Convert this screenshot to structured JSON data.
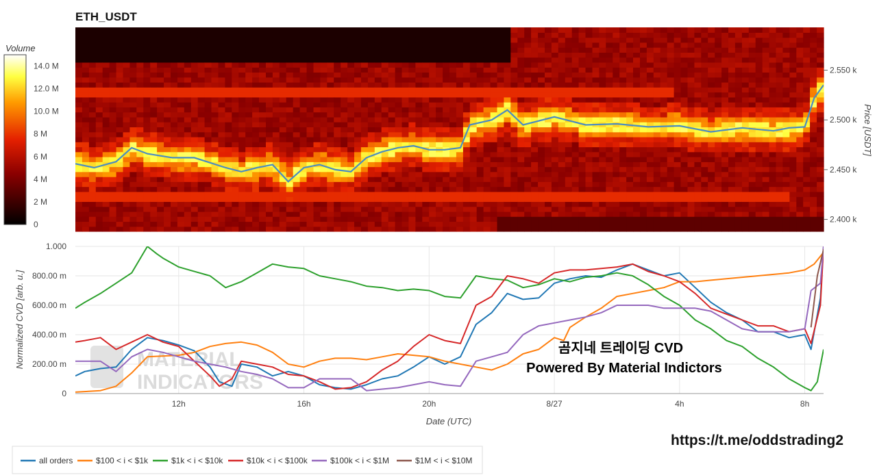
{
  "heatmap": {
    "title": "ETH_USDT",
    "colorbar_title": "Volume",
    "colorbar_ticks": [
      "0",
      "2 M",
      "4 M",
      "6 M",
      "8 M",
      "10.0 M",
      "12.0 M",
      "14.0 M"
    ],
    "price_axis_title": "Price [USDT]",
    "price_ticks": [
      "2.400 k",
      "2.450 k",
      "2.500 k",
      "2.550 k"
    ]
  },
  "cvd": {
    "ylabel": "Normalized CVD [arb. u.]",
    "xlabel": "Date (UTC)",
    "y_ticks": [
      "0",
      "200.00 m",
      "400.00 m",
      "600.00 m",
      "800.00 m",
      "1.000"
    ],
    "x_ticks": [
      "12h",
      "16h",
      "20h",
      "8/27",
      "4h",
      "8h"
    ]
  },
  "overlay": {
    "line1": "곰지네 트레이딩 CVD",
    "line2": "Powered By Material Indictors",
    "link": "https://t.me/oddstrading2",
    "watermark_line1": "MATERIAL",
    "watermark_line2": "INDICATORS"
  },
  "legend": [
    {
      "label": "all orders",
      "color": "#1f77b4"
    },
    {
      "label": "$100 < i < $1k",
      "color": "#ff7f0e"
    },
    {
      "label": "$1k < i < $10k",
      "color": "#2ca02c"
    },
    {
      "label": "$10k < i < $100k",
      "color": "#d62728"
    },
    {
      "label": "$100k < i < $1M",
      "color": "#9467bd"
    },
    {
      "label": "$1M < i < $10M",
      "color": "#8c564b"
    }
  ],
  "chart_data": [
    {
      "type": "heatmap",
      "title": "ETH_USDT",
      "ylabel": "Price [USDT]",
      "ylim": [
        2388,
        2593
      ],
      "x_time_hours": [
        8.7,
        32.6
      ],
      "colorbar": {
        "label": "Volume",
        "range": [
          0,
          15000000
        ]
      },
      "price_series": {
        "color": "#4a8cc2",
        "t": [
          8.7,
          9.3,
          10.0,
          10.5,
          11.0,
          11.8,
          12.5,
          13.5,
          14.0,
          14.5,
          15.0,
          15.5,
          16.0,
          16.5,
          17.0,
          17.5,
          18.0,
          18.5,
          19.0,
          19.5,
          20.0,
          20.5,
          21.0,
          21.3,
          22.0,
          22.5,
          23.0,
          24.0,
          25.0,
          26.0,
          27.0,
          28.0,
          29.0,
          30.0,
          31.0,
          31.5,
          32.0,
          32.3,
          32.6
        ],
        "price": [
          2456,
          2452,
          2458,
          2472,
          2466,
          2462,
          2462,
          2452,
          2448,
          2452,
          2455,
          2438,
          2452,
          2455,
          2450,
          2448,
          2462,
          2468,
          2472,
          2474,
          2470,
          2470,
          2472,
          2495,
          2500,
          2510,
          2495,
          2503,
          2495,
          2496,
          2493,
          2494,
          2488,
          2492,
          2489,
          2492,
          2493,
          2522,
          2535
        ]
      }
    },
    {
      "type": "line",
      "xlabel": "Date (UTC)",
      "ylabel": "Normalized CVD [arb. u.]",
      "ylim": [
        0,
        1.0
      ],
      "x_time_hours": [
        8.7,
        32.6
      ],
      "series": [
        {
          "name": "all orders",
          "color": "#1f77b4",
          "t": [
            8.7,
            9.0,
            9.5,
            10.0,
            10.5,
            11.0,
            11.5,
            12.0,
            12.5,
            13.0,
            13.3,
            13.7,
            14.0,
            14.5,
            15.0,
            15.5,
            16.0,
            16.5,
            17.0,
            17.5,
            18.0,
            18.5,
            19.0,
            19.5,
            20.0,
            20.5,
            21.0,
            21.5,
            22.0,
            22.5,
            23.0,
            23.5,
            24.0,
            24.5,
            25.0,
            25.5,
            26.0,
            26.5,
            27.0,
            27.5,
            28.0,
            28.5,
            29.0,
            29.5,
            30.0,
            30.5,
            31.0,
            31.5,
            32.0,
            32.2,
            32.5,
            32.6
          ],
          "y": [
            0.12,
            0.15,
            0.17,
            0.18,
            0.3,
            0.38,
            0.36,
            0.33,
            0.29,
            0.18,
            0.08,
            0.05,
            0.2,
            0.18,
            0.12,
            0.15,
            0.12,
            0.06,
            0.04,
            0.03,
            0.06,
            0.1,
            0.12,
            0.18,
            0.25,
            0.2,
            0.25,
            0.47,
            0.55,
            0.68,
            0.64,
            0.65,
            0.75,
            0.78,
            0.8,
            0.79,
            0.84,
            0.88,
            0.84,
            0.8,
            0.82,
            0.72,
            0.62,
            0.55,
            0.5,
            0.42,
            0.42,
            0.38,
            0.4,
            0.3,
            0.65,
            1.0
          ]
        },
        {
          "name": "$100 < i < $1k",
          "color": "#ff7f0e",
          "t": [
            8.7,
            9.5,
            10.0,
            10.5,
            11.0,
            12.0,
            12.5,
            13.0,
            13.5,
            14.0,
            14.5,
            15.0,
            15.5,
            16.0,
            16.5,
            17.0,
            17.5,
            18.0,
            18.5,
            19.0,
            19.5,
            20.0,
            20.5,
            21.0,
            21.5,
            22.0,
            22.5,
            23.0,
            23.5,
            24.0,
            24.3,
            24.5,
            25.0,
            25.5,
            26.0,
            26.5,
            27.0,
            27.5,
            28.0,
            28.5,
            29.0,
            29.5,
            30.0,
            30.5,
            31.0,
            31.5,
            32.0,
            32.3,
            32.6
          ],
          "y": [
            0.01,
            0.02,
            0.05,
            0.14,
            0.25,
            0.26,
            0.28,
            0.32,
            0.34,
            0.35,
            0.33,
            0.28,
            0.2,
            0.18,
            0.22,
            0.24,
            0.24,
            0.23,
            0.25,
            0.27,
            0.26,
            0.25,
            0.22,
            0.2,
            0.18,
            0.16,
            0.2,
            0.27,
            0.3,
            0.38,
            0.36,
            0.45,
            0.52,
            0.58,
            0.66,
            0.68,
            0.7,
            0.72,
            0.76,
            0.76,
            0.77,
            0.78,
            0.79,
            0.8,
            0.81,
            0.82,
            0.84,
            0.88,
            0.96
          ]
        },
        {
          "name": "$1k < i < $10k",
          "color": "#2ca02c",
          "t": [
            8.7,
            9.0,
            9.5,
            10.0,
            10.5,
            11.0,
            11.3,
            11.5,
            12.0,
            12.5,
            13.0,
            13.5,
            14.0,
            14.5,
            15.0,
            15.5,
            16.0,
            16.5,
            17.0,
            17.5,
            18.0,
            18.5,
            19.0,
            19.5,
            20.0,
            20.5,
            21.0,
            21.5,
            22.0,
            22.5,
            23.0,
            23.5,
            24.0,
            24.5,
            25.0,
            25.5,
            26.0,
            26.5,
            27.0,
            27.5,
            28.0,
            28.5,
            29.0,
            29.5,
            30.0,
            30.5,
            31.0,
            31.5,
            32.0,
            32.2,
            32.4,
            32.6
          ],
          "y": [
            0.58,
            0.62,
            0.68,
            0.75,
            0.82,
            1.0,
            0.95,
            0.92,
            0.86,
            0.83,
            0.8,
            0.72,
            0.76,
            0.82,
            0.88,
            0.86,
            0.85,
            0.8,
            0.78,
            0.76,
            0.73,
            0.72,
            0.7,
            0.71,
            0.7,
            0.66,
            0.65,
            0.8,
            0.78,
            0.77,
            0.72,
            0.74,
            0.78,
            0.76,
            0.79,
            0.8,
            0.82,
            0.8,
            0.74,
            0.66,
            0.6,
            0.5,
            0.44,
            0.36,
            0.32,
            0.24,
            0.18,
            0.1,
            0.04,
            0.02,
            0.08,
            0.3
          ]
        },
        {
          "name": "$10k < i < $100k",
          "color": "#d62728",
          "t": [
            8.7,
            9.0,
            9.5,
            10.0,
            10.5,
            11.0,
            11.5,
            12.0,
            12.5,
            13.0,
            13.3,
            13.7,
            14.0,
            14.5,
            15.0,
            15.5,
            16.0,
            16.5,
            17.0,
            17.5,
            18.0,
            18.5,
            19.0,
            19.5,
            20.0,
            20.5,
            21.0,
            21.5,
            22.0,
            22.5,
            23.0,
            23.5,
            24.0,
            24.5,
            25.0,
            25.5,
            26.0,
            26.5,
            27.0,
            27.5,
            28.0,
            28.5,
            29.0,
            29.5,
            30.0,
            30.5,
            31.0,
            31.5,
            32.0,
            32.2,
            32.5,
            32.6
          ],
          "y": [
            0.35,
            0.36,
            0.38,
            0.3,
            0.35,
            0.4,
            0.35,
            0.32,
            0.22,
            0.12,
            0.05,
            0.1,
            0.22,
            0.2,
            0.18,
            0.13,
            0.12,
            0.08,
            0.03,
            0.04,
            0.08,
            0.16,
            0.22,
            0.32,
            0.4,
            0.36,
            0.34,
            0.6,
            0.66,
            0.8,
            0.78,
            0.75,
            0.82,
            0.84,
            0.84,
            0.85,
            0.86,
            0.88,
            0.83,
            0.8,
            0.76,
            0.68,
            0.58,
            0.54,
            0.5,
            0.46,
            0.46,
            0.42,
            0.44,
            0.34,
            0.6,
            1.0
          ]
        },
        {
          "name": "$100k < i < $1M",
          "color": "#9467bd",
          "t": [
            8.7,
            9.5,
            10.0,
            10.5,
            11.0,
            11.5,
            12.0,
            12.5,
            13.0,
            13.5,
            14.0,
            14.5,
            15.0,
            15.5,
            16.0,
            16.5,
            17.0,
            17.5,
            18.0,
            18.5,
            19.0,
            19.5,
            20.0,
            20.5,
            21.0,
            21.5,
            22.0,
            22.5,
            23.0,
            23.5,
            24.0,
            24.5,
            25.0,
            25.5,
            26.0,
            26.5,
            27.0,
            27.5,
            28.0,
            28.5,
            29.0,
            29.5,
            30.0,
            30.5,
            31.0,
            31.5,
            32.0,
            32.2,
            32.5,
            32.6
          ],
          "y": [
            0.22,
            0.22,
            0.15,
            0.25,
            0.3,
            0.28,
            0.25,
            0.22,
            0.2,
            0.18,
            0.15,
            0.13,
            0.1,
            0.04,
            0.04,
            0.1,
            0.1,
            0.1,
            0.02,
            0.03,
            0.04,
            0.06,
            0.08,
            0.06,
            0.05,
            0.22,
            0.25,
            0.28,
            0.4,
            0.46,
            0.48,
            0.5,
            0.52,
            0.55,
            0.6,
            0.6,
            0.6,
            0.58,
            0.58,
            0.58,
            0.56,
            0.5,
            0.44,
            0.42,
            0.42,
            0.42,
            0.44,
            0.7,
            0.75,
            1.0
          ]
        },
        {
          "name": "$1M < i < $10M",
          "color": "#8c564b",
          "t": [
            32.2,
            32.4,
            32.6
          ],
          "y": [
            0.45,
            0.8,
            0.98
          ]
        }
      ]
    }
  ]
}
